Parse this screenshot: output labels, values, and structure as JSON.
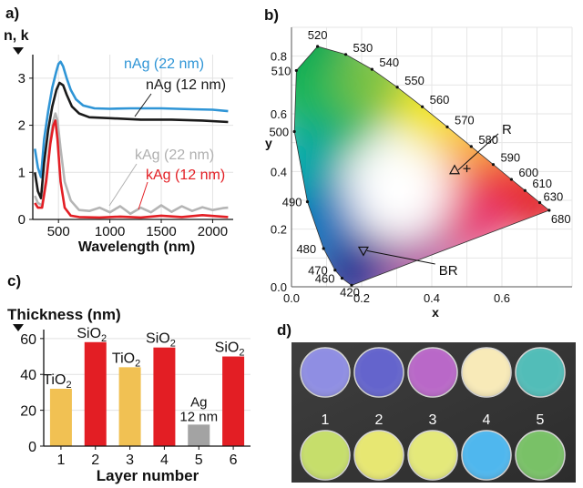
{
  "panels": {
    "a": "a)",
    "b": "b)",
    "c": "c)",
    "d": "d)"
  },
  "chart_data": [
    {
      "id": "a",
      "type": "line",
      "ylabel": "n, k",
      "xlabel": "Wavelength (nm)",
      "xlim": [
        250,
        2200
      ],
      "ylim": [
        0,
        3.5
      ],
      "xticks": [
        500,
        1000,
        1500,
        2000
      ],
      "yticks": [
        0,
        1,
        2,
        3
      ],
      "series": [
        {
          "name": "nAg (22 nm)",
          "color": "#2f95d6",
          "points": [
            [
              270,
              1.5
            ],
            [
              300,
              1.1
            ],
            [
              330,
              0.9
            ],
            [
              360,
              1.7
            ],
            [
              400,
              2.3
            ],
            [
              440,
              2.8
            ],
            [
              480,
              3.15
            ],
            [
              500,
              3.3
            ],
            [
              520,
              3.35
            ],
            [
              545,
              3.25
            ],
            [
              580,
              3.0
            ],
            [
              620,
              2.75
            ],
            [
              670,
              2.55
            ],
            [
              740,
              2.42
            ],
            [
              850,
              2.36
            ],
            [
              1000,
              2.35
            ],
            [
              1200,
              2.36
            ],
            [
              1500,
              2.36
            ],
            [
              1800,
              2.34
            ],
            [
              2000,
              2.33
            ],
            [
              2150,
              2.3
            ]
          ]
        },
        {
          "name": "nAg (12 nm)",
          "color": "#1a1a1a",
          "points": [
            [
              270,
              1.0
            ],
            [
              300,
              0.6
            ],
            [
              330,
              0.45
            ],
            [
              360,
              1.2
            ],
            [
              400,
              1.9
            ],
            [
              440,
              2.4
            ],
            [
              480,
              2.75
            ],
            [
              510,
              2.9
            ],
            [
              545,
              2.85
            ],
            [
              580,
              2.65
            ],
            [
              630,
              2.4
            ],
            [
              700,
              2.25
            ],
            [
              800,
              2.17
            ],
            [
              1000,
              2.15
            ],
            [
              1300,
              2.12
            ],
            [
              1600,
              2.12
            ],
            [
              1900,
              2.1
            ],
            [
              2150,
              2.07
            ]
          ]
        },
        {
          "name": "kAg (22 nm)",
          "color": "#b5b5b5",
          "points": [
            [
              270,
              0.5
            ],
            [
              300,
              0.35
            ],
            [
              340,
              0.3
            ],
            [
              380,
              0.9
            ],
            [
              420,
              1.7
            ],
            [
              450,
              2.1
            ],
            [
              470,
              2.25
            ],
            [
              490,
              2.1
            ],
            [
              520,
              1.5
            ],
            [
              560,
              0.8
            ],
            [
              620,
              0.4
            ],
            [
              700,
              0.2
            ],
            [
              800,
              0.18
            ],
            [
              900,
              0.25
            ],
            [
              1000,
              0.15
            ],
            [
              1100,
              0.28
            ],
            [
              1200,
              0.12
            ],
            [
              1300,
              0.25
            ],
            [
              1400,
              0.15
            ],
            [
              1500,
              0.3
            ],
            [
              1600,
              0.16
            ],
            [
              1700,
              0.28
            ],
            [
              1800,
              0.18
            ],
            [
              1900,
              0.26
            ],
            [
              2000,
              0.2
            ],
            [
              2100,
              0.24
            ],
            [
              2150,
              0.25
            ]
          ]
        },
        {
          "name": "kAg (12 nm)",
          "color": "#e31e24",
          "points": [
            [
              270,
              0.35
            ],
            [
              300,
              0.25
            ],
            [
              340,
              0.25
            ],
            [
              380,
              0.8
            ],
            [
              420,
              1.6
            ],
            [
              450,
              2.0
            ],
            [
              470,
              2.1
            ],
            [
              490,
              1.7
            ],
            [
              520,
              0.8
            ],
            [
              560,
              0.25
            ],
            [
              620,
              0.08
            ],
            [
              700,
              0.05
            ],
            [
              900,
              0.04
            ],
            [
              1100,
              0.06
            ],
            [
              1300,
              0.04
            ],
            [
              1500,
              0.08
            ],
            [
              1700,
              0.05
            ],
            [
              1900,
              0.09
            ],
            [
              2150,
              0.05
            ]
          ]
        }
      ]
    },
    {
      "id": "b",
      "type": "scatter",
      "xlabel": "x",
      "ylabel": "y",
      "xlim": [
        0.0,
        0.8
      ],
      "ylim": [
        0.0,
        0.9
      ],
      "xticks": [
        0.0,
        0.2,
        0.4,
        0.6
      ],
      "yticks": [
        0.0,
        0.2,
        0.4,
        0.6,
        0.8
      ],
      "locus": [
        {
          "nm": "420",
          "x": 0.1714,
          "y": 0.0051
        },
        {
          "nm": "460",
          "x": 0.144,
          "y": 0.0297
        },
        {
          "nm": "470",
          "x": 0.1241,
          "y": 0.0578
        },
        {
          "nm": "480",
          "x": 0.0913,
          "y": 0.1327
        },
        {
          "nm": "490",
          "x": 0.0454,
          "y": 0.295
        },
        {
          "nm": "500",
          "x": 0.0082,
          "y": 0.5384
        },
        {
          "nm": "510",
          "x": 0.0139,
          "y": 0.7502
        },
        {
          "nm": "520",
          "x": 0.0743,
          "y": 0.8338
        },
        {
          "nm": "530",
          "x": 0.1547,
          "y": 0.8059
        },
        {
          "nm": "540",
          "x": 0.2296,
          "y": 0.7543
        },
        {
          "nm": "550",
          "x": 0.3016,
          "y": 0.6923
        },
        {
          "nm": "560",
          "x": 0.3731,
          "y": 0.6245
        },
        {
          "nm": "570",
          "x": 0.4441,
          "y": 0.5547
        },
        {
          "nm": "580",
          "x": 0.5125,
          "y": 0.4866
        },
        {
          "nm": "590",
          "x": 0.5752,
          "y": 0.4242
        },
        {
          "nm": "600",
          "x": 0.627,
          "y": 0.3725
        },
        {
          "nm": "610",
          "x": 0.6658,
          "y": 0.334
        },
        {
          "nm": "630",
          "x": 0.7079,
          "y": 0.292
        },
        {
          "nm": "680",
          "x": 0.7347,
          "y": 0.2653
        }
      ],
      "markers": [
        {
          "label": "R",
          "x": 0.465,
          "y": 0.405,
          "shape": "triangle-up",
          "text_x": 0.6,
          "text_y": 0.55
        },
        {
          "label": "BR",
          "x": 0.205,
          "y": 0.125,
          "shape": "triangle-down",
          "text_x": 0.42,
          "text_y": 0.06
        }
      ],
      "crosses": [
        {
          "x": 0.5,
          "y": 0.41
        }
      ]
    },
    {
      "id": "c",
      "type": "bar",
      "ylabel": "Thickness (nm)",
      "xlabel": "Layer number",
      "categories": [
        "1",
        "2",
        "3",
        "4",
        "5",
        "6"
      ],
      "values": [
        32,
        58,
        44,
        55,
        12,
        50
      ],
      "colors": [
        "#f1c153",
        "#e31e24",
        "#f1c153",
        "#e31e24",
        "#a3a3a3",
        "#e31e24"
      ],
      "labels": [
        {
          "main": "TiO",
          "sub": "2",
          "extra": ""
        },
        {
          "main": "SiO",
          "sub": "2",
          "extra": ""
        },
        {
          "main": "TiO",
          "sub": "2",
          "extra": ""
        },
        {
          "main": "SiO",
          "sub": "2",
          "extra": ""
        },
        {
          "main": "Ag",
          "sub": "",
          "extra": "12 nm"
        },
        {
          "main": "SiO",
          "sub": "2",
          "extra": ""
        }
      ],
      "ylim": [
        0,
        65
      ],
      "yticks": [
        0,
        20,
        40,
        60
      ]
    },
    {
      "id": "d",
      "type": "table",
      "labels": [
        "1",
        "2",
        "3",
        "4",
        "5"
      ],
      "top_colors": [
        "#8f8ee3",
        "#6464cc",
        "#b968c8",
        "#f8eab8",
        "#52bdb8"
      ],
      "bottom_colors": [
        "#c6de6b",
        "#e7e772",
        "#e4e97a",
        "#4fb7ee",
        "#79c167"
      ]
    }
  ]
}
